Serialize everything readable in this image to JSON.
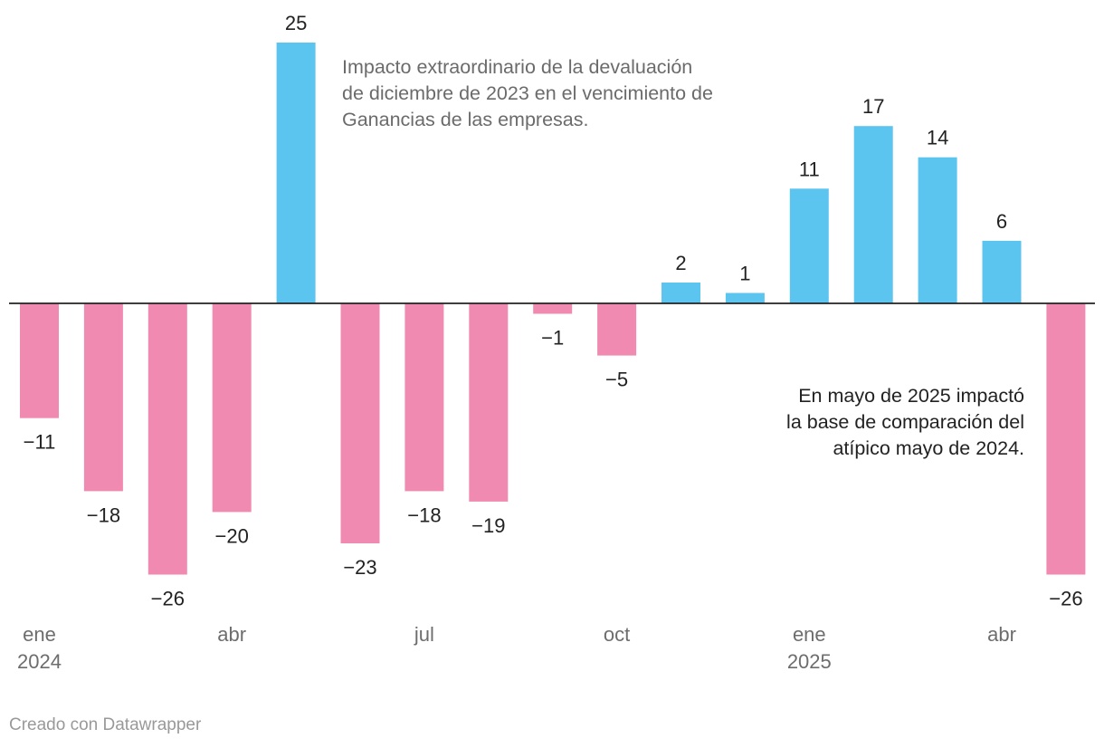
{
  "chart_data": {
    "type": "bar",
    "title": "",
    "xlabel": "",
    "ylabel": "",
    "ylim": [
      -26,
      25
    ],
    "grid": false,
    "categories": [
      "ene 2024",
      "feb 2024",
      "mar 2024",
      "abr 2024",
      "may 2024",
      "jun 2024",
      "jul 2024",
      "ago 2024",
      "sep 2024",
      "oct 2024",
      "nov 2024",
      "dic 2024",
      "ene 2025",
      "feb 2025",
      "mar 2025",
      "abr 2025",
      "may 2025"
    ],
    "values": [
      -11,
      -18,
      -26,
      -20,
      25,
      -23,
      -18,
      -19,
      -1,
      -5,
      2,
      1,
      11,
      17,
      14,
      6,
      -26
    ],
    "value_labels": [
      "−11",
      "−18",
      "−26",
      "−20",
      "25",
      "−23",
      "−18",
      "−19",
      "−1",
      "−5",
      "2",
      "1",
      "11",
      "17",
      "14",
      "6",
      "−26"
    ],
    "x_ticks": [
      {
        "index": 0,
        "line1": "ene",
        "line2": "2024"
      },
      {
        "index": 3,
        "line1": "abr",
        "line2": ""
      },
      {
        "index": 6,
        "line1": "jul",
        "line2": ""
      },
      {
        "index": 9,
        "line1": "oct",
        "line2": ""
      },
      {
        "index": 12,
        "line1": "ene",
        "line2": "2025"
      },
      {
        "index": 15,
        "line1": "abr",
        "line2": ""
      }
    ],
    "annotations": [
      "Impacto extraordinario de la devaluación de diciembre de 2023 en el vencimiento de Ganancias de las empresas.",
      "En mayo de 2025 impactó la base de comparación del atípico mayo de 2024."
    ],
    "colors": {
      "positive": "#5bc5f0",
      "negative": "#f18ab1",
      "axis": "#222222"
    }
  },
  "footer": {
    "credit": "Creado con Datawrapper"
  }
}
